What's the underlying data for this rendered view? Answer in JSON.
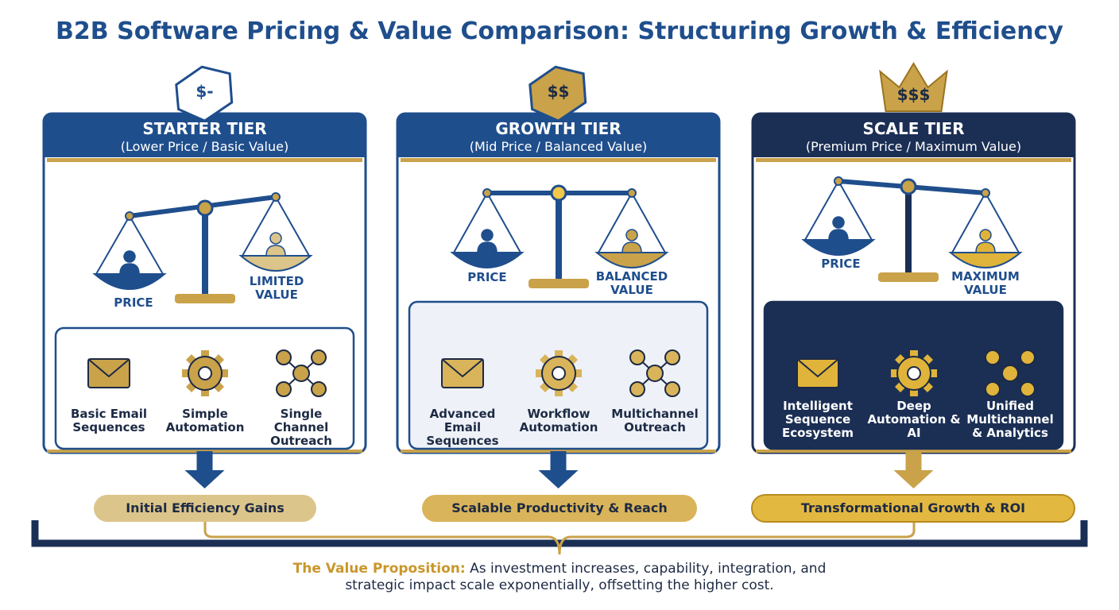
{
  "title": "B2B Software Pricing & Value Comparison: Structuring Growth & Efficiency",
  "tiers": [
    {
      "price_tag": "$-",
      "name": "STARTER TIER",
      "subtitle": "(Lower Price / Basic Value)",
      "left_label": "PRICE",
      "right_label": "LIMITED VALUE",
      "features": [
        "Basic Email Sequences",
        "Simple Automation",
        "Single Channel Outreach"
      ],
      "outcome": "Initial Efficiency Gains"
    },
    {
      "price_tag": "$$",
      "name": "GROWTH TIER",
      "subtitle": "(Mid Price / Balanced Value)",
      "left_label": "PRICE",
      "right_label": "BALANCED VALUE",
      "features": [
        "Advanced Email Sequences",
        "Workflow Automation",
        "Multichannel Outreach"
      ],
      "outcome": "Scalable Productivity & Reach"
    },
    {
      "price_tag": "$$$",
      "name": "SCALE TIER",
      "subtitle": "(Premium Price / Maximum Value)",
      "left_label": "PRICE",
      "right_label": "MAXIMUM VALUE",
      "features": [
        "Intelligent Sequence Ecosystem",
        "Deep Automation & AI",
        "Unified Multichannel & Analytics"
      ],
      "outcome": "Transformational Growth & ROI"
    }
  ],
  "footer": {
    "lead": "The Value Proposition:",
    "text": "As investment increases, capability, integration, and strategic impact scale exponentially, offsetting the higher cost."
  }
}
